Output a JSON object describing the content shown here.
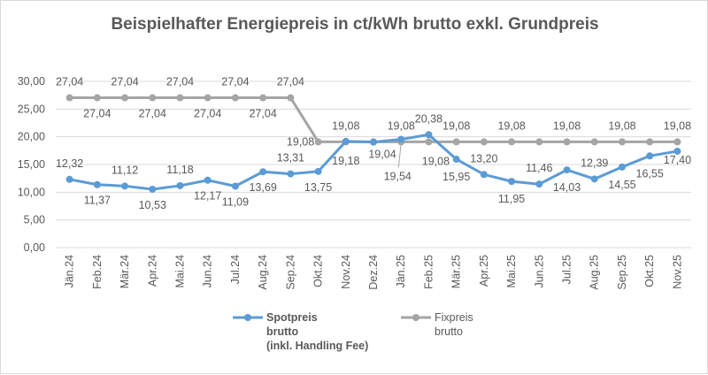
{
  "chart_data": {
    "type": "line",
    "title": "Beispielhafter Energiepreis in ct/kWh brutto exkl. Grundpreis",
    "categories": [
      "Jän.24",
      "Feb.24",
      "Mär.24",
      "Apr.24",
      "Mai.24",
      "Jun.24",
      "Jul.24",
      "Aug.24",
      "Sep.24",
      "Okt.24",
      "Nov.24",
      "Dez.24",
      "Jän.25",
      "Feb.25",
      "Mär.25",
      "Apr.25",
      "Mai.25",
      "Jun.25",
      "Jul.25",
      "Aug.25",
      "Sep.25",
      "Okt.25",
      "Nov.25"
    ],
    "ylim": [
      0,
      30
    ],
    "yticks": [
      "0,00",
      "5,00",
      "10,00",
      "15,00",
      "20,00",
      "25,00",
      "30,00"
    ],
    "grid": true,
    "legend_position": "bottom",
    "series": [
      {
        "name": "Spotpreis brutto (inkl. Handling Fee)",
        "color": "#5b9bd5",
        "values": [
          12.32,
          11.37,
          11.12,
          10.53,
          11.18,
          12.17,
          11.09,
          13.69,
          13.31,
          13.75,
          19.18,
          19.04,
          19.54,
          20.38,
          15.95,
          13.2,
          11.95,
          11.46,
          14.03,
          12.39,
          14.55,
          16.55,
          17.4
        ]
      },
      {
        "name": "Fixpreis brutto",
        "color": "#a5a5a5",
        "values": [
          27.04,
          27.04,
          27.04,
          27.04,
          27.04,
          27.04,
          27.04,
          27.04,
          27.04,
          19.08,
          19.08,
          19.08,
          19.08,
          19.08,
          19.08,
          19.08,
          19.08,
          19.08,
          19.08,
          19.08,
          19.08,
          19.08,
          19.08
        ]
      }
    ],
    "legend": [
      {
        "lines": [
          "Spotpreis",
          "brutto",
          "(inkl. Handling Fee)"
        ]
      },
      {
        "lines": [
          "Fixpreis",
          "brutto"
        ]
      }
    ]
  }
}
